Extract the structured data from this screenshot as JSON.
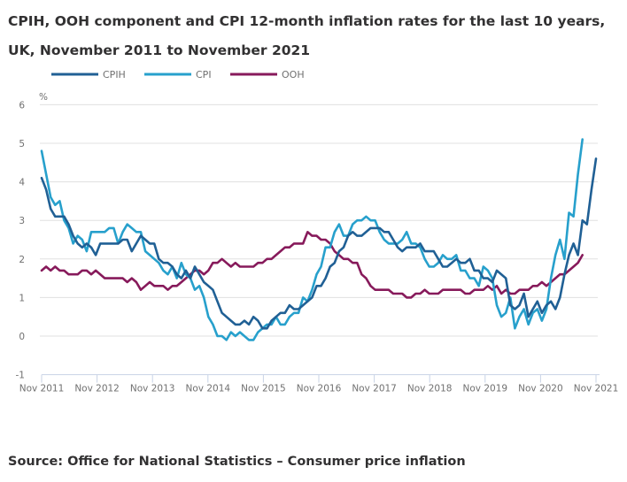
{
  "chart_data": {
    "type": "line",
    "title": "CPIH, OOH component and CPI 12-month inflation rates for the last 10 years, UK, November 2011 to November 2021",
    "ylabel": "%",
    "xlabel": "",
    "ylim": [
      -1,
      6
    ],
    "yticks": [
      -1,
      0,
      1,
      2,
      3,
      4,
      5,
      6
    ],
    "grid": true,
    "legend_position": "top-left",
    "x_start": "Nov 2011",
    "x_end": "Nov 2021",
    "xtick_labels": [
      "Nov 2011",
      "Nov 2012",
      "Nov 2013",
      "Nov 2014",
      "Nov 2015",
      "Nov 2016",
      "Nov 2017",
      "Nov 2018",
      "Nov 2019",
      "Nov 2020",
      "Nov 2021"
    ],
    "series": [
      {
        "name": "CPIH",
        "color": "#206095",
        "values": [
          4.1,
          3.8,
          3.3,
          3.1,
          3.1,
          3.1,
          2.9,
          2.6,
          2.4,
          2.3,
          2.4,
          2.3,
          2.1,
          2.4,
          2.4,
          2.4,
          2.4,
          2.4,
          2.5,
          2.5,
          2.2,
          2.4,
          2.6,
          2.5,
          2.4,
          2.4,
          2.0,
          1.9,
          1.9,
          1.8,
          1.6,
          1.5,
          1.7,
          1.5,
          1.8,
          1.6,
          1.4,
          1.3,
          1.2,
          0.9,
          0.6,
          0.5,
          0.4,
          0.3,
          0.3,
          0.4,
          0.3,
          0.5,
          0.4,
          0.2,
          0.2,
          0.4,
          0.5,
          0.6,
          0.6,
          0.8,
          0.7,
          0.7,
          0.8,
          0.9,
          1.0,
          1.3,
          1.3,
          1.5,
          1.8,
          1.9,
          2.2,
          2.3,
          2.6,
          2.7,
          2.6,
          2.6,
          2.7,
          2.8,
          2.8,
          2.8,
          2.7,
          2.7,
          2.5,
          2.3,
          2.2,
          2.3,
          2.3,
          2.3,
          2.4,
          2.2,
          2.2,
          2.2,
          2.0,
          1.8,
          1.8,
          1.9,
          2.0,
          1.9,
          1.9,
          2.0,
          1.7,
          1.7,
          1.5,
          1.5,
          1.4,
          1.7,
          1.6,
          1.5,
          0.8,
          0.7,
          0.8,
          1.1,
          0.5,
          0.7,
          0.9,
          0.6,
          0.8,
          0.9,
          0.7,
          1.0,
          1.6,
          2.1,
          2.4,
          2.1,
          3.0,
          2.9,
          3.8,
          4.6
        ],
        "note": "monthly values Nov 2011 to Nov 2021 (approx. read from chart)"
      },
      {
        "name": "CPI",
        "color": "#27a0cc",
        "values": [
          4.8,
          4.2,
          3.6,
          3.4,
          3.5,
          3.0,
          2.8,
          2.4,
          2.6,
          2.5,
          2.2,
          2.7,
          2.7,
          2.7,
          2.7,
          2.8,
          2.8,
          2.4,
          2.7,
          2.9,
          2.8,
          2.7,
          2.7,
          2.2,
          2.1,
          2.0,
          1.9,
          1.7,
          1.6,
          1.8,
          1.5,
          1.9,
          1.6,
          1.5,
          1.2,
          1.3,
          1.0,
          0.5,
          0.3,
          0.0,
          0.0,
          -0.1,
          0.1,
          0.0,
          0.1,
          0.0,
          -0.1,
          -0.1,
          0.1,
          0.2,
          0.3,
          0.3,
          0.5,
          0.3,
          0.3,
          0.5,
          0.6,
          0.6,
          1.0,
          0.9,
          1.2,
          1.6,
          1.8,
          2.3,
          2.3,
          2.7,
          2.9,
          2.6,
          2.6,
          2.9,
          3.0,
          3.0,
          3.1,
          3.0,
          3.0,
          2.7,
          2.5,
          2.4,
          2.4,
          2.4,
          2.5,
          2.7,
          2.4,
          2.4,
          2.3,
          2.0,
          1.8,
          1.8,
          1.9,
          2.1,
          2.0,
          2.0,
          2.1,
          1.7,
          1.7,
          1.5,
          1.5,
          1.3,
          1.8,
          1.7,
          1.5,
          0.8,
          0.5,
          0.6,
          1.0,
          0.2,
          0.5,
          0.7,
          0.3,
          0.6,
          0.7,
          0.4,
          0.7,
          1.5,
          2.1,
          2.5,
          2.0,
          3.2,
          3.1,
          4.2,
          5.1
        ],
        "note": "monthly values Nov 2011 to Nov 2021 (approx. read from chart)"
      },
      {
        "name": "OOH",
        "color": "#871a5b",
        "values": [
          1.7,
          1.8,
          1.7,
          1.8,
          1.7,
          1.7,
          1.6,
          1.6,
          1.6,
          1.7,
          1.7,
          1.6,
          1.7,
          1.6,
          1.5,
          1.5,
          1.5,
          1.5,
          1.5,
          1.4,
          1.5,
          1.4,
          1.2,
          1.3,
          1.4,
          1.3,
          1.3,
          1.3,
          1.2,
          1.3,
          1.3,
          1.4,
          1.5,
          1.6,
          1.7,
          1.7,
          1.6,
          1.7,
          1.9,
          1.9,
          2.0,
          1.9,
          1.8,
          1.9,
          1.8,
          1.8,
          1.8,
          1.8,
          1.9,
          1.9,
          2.0,
          2.0,
          2.1,
          2.2,
          2.3,
          2.3,
          2.4,
          2.4,
          2.4,
          2.7,
          2.6,
          2.6,
          2.5,
          2.5,
          2.4,
          2.2,
          2.1,
          2.0,
          2.0,
          1.9,
          1.9,
          1.6,
          1.5,
          1.3,
          1.2,
          1.2,
          1.2,
          1.2,
          1.1,
          1.1,
          1.1,
          1.0,
          1.0,
          1.1,
          1.1,
          1.2,
          1.1,
          1.1,
          1.1,
          1.2,
          1.2,
          1.2,
          1.2,
          1.2,
          1.1,
          1.1,
          1.2,
          1.2,
          1.2,
          1.3,
          1.2,
          1.3,
          1.1,
          1.2,
          1.1,
          1.1,
          1.2,
          1.2,
          1.2,
          1.3,
          1.3,
          1.4,
          1.3,
          1.4,
          1.5,
          1.6,
          1.6,
          1.7,
          1.8,
          1.9,
          2.1
        ],
        "note": "monthly values Nov 2011 to Nov 2021 (approx. read from chart)"
      }
    ]
  },
  "header": {
    "title": "CPIH, OOH component and CPI 12-month inflation rates for the last 10 years, UK, November 2011 to November 2021"
  },
  "legend": {
    "items": [
      {
        "label": "CPIH",
        "color": "#206095"
      },
      {
        "label": "CPI",
        "color": "#27a0cc"
      },
      {
        "label": "OOH",
        "color": "#871a5b"
      }
    ]
  },
  "axis": {
    "y_unit": "%",
    "y_labels": [
      "6",
      "5",
      "4",
      "3",
      "2",
      "1",
      "0",
      "-1"
    ],
    "x_labels": [
      "Nov 2011",
      "Nov 2012",
      "Nov 2013",
      "Nov 2014",
      "Nov 2015",
      "Nov 2016",
      "Nov 2017",
      "Nov 2018",
      "Nov 2019",
      "Nov 2020",
      "Nov 2021"
    ]
  },
  "footer": {
    "source": "Source: Office for National Statistics – Consumer price inflation"
  }
}
